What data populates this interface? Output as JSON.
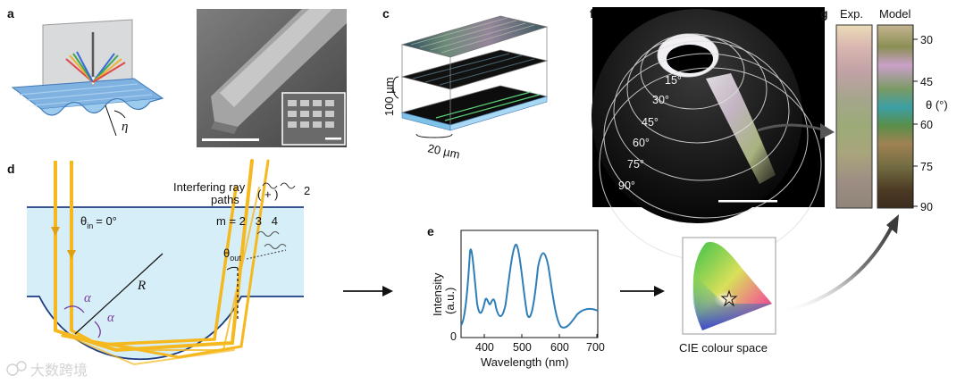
{
  "panels": {
    "a": {
      "label": "a",
      "eta": "η"
    },
    "b": {
      "label": "b"
    },
    "c": {
      "label": "c",
      "height_label": "100 µm",
      "width_label": "20 µm"
    },
    "d": {
      "label": "d",
      "interfering_line1": "Interfering ray",
      "interfering_line2": "paths",
      "interfering_formula": "( + )",
      "interfering_exp": "2",
      "theta_in": "θ",
      "theta_in_sub": "in",
      "theta_in_val": "= 0°",
      "orders": "m = 2   3   4",
      "theta_out": "θ",
      "theta_out_sub": "out",
      "radius": "R",
      "alpha": "α"
    },
    "e": {
      "label": "e",
      "ylabel": "Intensity",
      "ylabel2": "(a.u.)",
      "xlabel": "Wavelength (nm)",
      "y_tick": "0",
      "x_ticks": [
        "400",
        "500",
        "600",
        "700"
      ],
      "cie_label": "CIE colour space"
    },
    "f": {
      "label": "f",
      "angles": [
        "15°",
        "30°",
        "45°",
        "60°",
        "75°",
        "90°"
      ]
    },
    "g": {
      "label": "g",
      "col_exp": "Exp.",
      "col_model": "Model",
      "axis_label": "θ (°)",
      "ticks": [
        "30",
        "45",
        "60",
        "75",
        "90"
      ]
    }
  },
  "watermark": "大数跨境",
  "colors": {
    "ray": "#f5b81e",
    "water": "#d6eef8",
    "curve": "#2e7fb8",
    "interface": "#1d3c80"
  }
}
